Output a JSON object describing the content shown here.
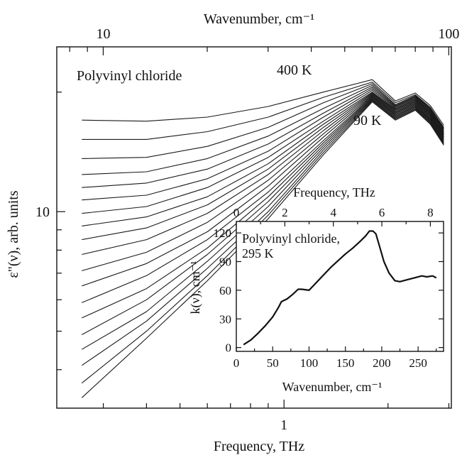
{
  "chart_data": [
    {
      "type": "line",
      "title": "",
      "xlabel": "Frequency, THz",
      "x2label": "Wavenumber, cm⁻¹",
      "ylabel": "ε\"(ν), arb. units",
      "xscale": "log",
      "yscale": "log",
      "xlim": [
        0.22,
        3.05
      ],
      "ylim": [
        3.2,
        26
      ],
      "x_ticks": [
        {
          "value": 1,
          "label": "1"
        }
      ],
      "x2_ticks": [
        {
          "value": 10,
          "label": "10"
        },
        {
          "value": 100,
          "label": "100"
        }
      ],
      "y_ticks": [
        {
          "value": 10,
          "label": "10"
        }
      ],
      "annotations": {
        "material": "Polyvinyl chloride",
        "top_temp": "400 K",
        "bottom_temp": "90 K"
      },
      "x": [
        0.26,
        0.4,
        0.6,
        0.9,
        1.3,
        1.8,
        2.1,
        2.4,
        2.65,
        2.9
      ],
      "series": [
        {
          "values": [
            17.0,
            16.9,
            17.3,
            18.4,
            20.0,
            21.5,
            19.0,
            19.9,
            18.5,
            16.5
          ]
        },
        {
          "values": [
            15.2,
            15.2,
            15.9,
            17.3,
            19.4,
            21.2,
            18.8,
            19.7,
            18.3,
            16.3
          ]
        },
        {
          "values": [
            13.6,
            13.7,
            14.6,
            16.3,
            18.8,
            21.0,
            18.6,
            19.6,
            18.2,
            16.2
          ]
        },
        {
          "values": [
            12.4,
            12.6,
            13.6,
            15.5,
            18.2,
            20.8,
            18.5,
            19.5,
            18.1,
            16.1
          ]
        },
        {
          "values": [
            11.5,
            11.8,
            12.8,
            14.8,
            17.7,
            20.6,
            18.4,
            19.4,
            18.0,
            16.0
          ]
        },
        {
          "values": [
            10.7,
            11.0,
            12.1,
            14.2,
            17.3,
            20.4,
            18.3,
            19.3,
            17.9,
            15.9
          ]
        },
        {
          "values": [
            9.9,
            10.3,
            11.5,
            13.7,
            16.9,
            20.2,
            18.2,
            19.2,
            17.8,
            15.8
          ]
        },
        {
          "values": [
            9.2,
            9.7,
            10.9,
            13.2,
            16.6,
            20.0,
            18.1,
            19.1,
            17.7,
            15.7
          ]
        },
        {
          "values": [
            8.5,
            9.1,
            10.4,
            12.8,
            16.3,
            19.9,
            18.0,
            19.0,
            17.6,
            15.6
          ]
        },
        {
          "values": [
            7.8,
            8.5,
            9.9,
            12.4,
            16.0,
            19.8,
            17.9,
            18.9,
            17.5,
            15.6
          ]
        },
        {
          "values": [
            7.1,
            7.9,
            9.4,
            12.0,
            15.7,
            19.7,
            17.8,
            18.8,
            17.4,
            15.5
          ]
        },
        {
          "values": [
            6.5,
            7.4,
            8.9,
            11.6,
            15.4,
            19.6,
            17.7,
            18.7,
            17.3,
            15.4
          ]
        },
        {
          "values": [
            5.9,
            6.9,
            8.5,
            11.2,
            15.1,
            19.5,
            17.6,
            18.6,
            17.2,
            15.3
          ]
        },
        {
          "values": [
            5.4,
            6.4,
            8.1,
            10.9,
            14.9,
            19.4,
            17.5,
            18.5,
            17.1,
            15.2
          ]
        },
        {
          "values": [
            4.9,
            6.0,
            7.8,
            10.6,
            14.7,
            19.3,
            17.4,
            18.4,
            17.0,
            15.1
          ]
        },
        {
          "values": [
            4.5,
            5.6,
            7.5,
            10.3,
            14.5,
            19.2,
            17.3,
            18.3,
            16.9,
            15.0
          ]
        },
        {
          "values": [
            4.1,
            5.3,
            7.2,
            10.0,
            14.3,
            19.1,
            17.2,
            18.2,
            16.8,
            14.9
          ]
        },
        {
          "values": [
            3.7,
            5.0,
            6.9,
            9.8,
            14.1,
            19.0,
            17.1,
            18.1,
            16.7,
            14.8
          ]
        },
        {
          "values": [
            3.4,
            4.8,
            6.7,
            9.6,
            13.9,
            18.9,
            17.0,
            18.0,
            16.6,
            14.7
          ]
        }
      ]
    },
    {
      "type": "line",
      "title": "",
      "xlabel": "Wavenumber,  cm⁻¹",
      "x2label": "Frequency, THz",
      "ylabel": "k(ν), cm⁻¹",
      "xlim": [
        0,
        285
      ],
      "ylim": [
        -4,
        132
      ],
      "x_ticks": [
        0,
        50,
        100,
        150,
        200,
        250
      ],
      "x2_ticks": [
        0,
        2,
        4,
        6,
        8
      ],
      "y_ticks": [
        0,
        30,
        60,
        90,
        120
      ],
      "annotations": {
        "line1": "Polyvinyl chloride,",
        "line2": "295 K"
      },
      "series": [
        {
          "name": "295 K",
          "x": [
            10,
            20,
            30,
            40,
            50,
            58,
            62,
            70,
            78,
            85,
            90,
            100,
            110,
            120,
            130,
            140,
            150,
            160,
            170,
            178,
            183,
            188,
            192,
            197,
            203,
            210,
            218,
            225,
            235,
            245,
            255,
            262,
            270,
            275
          ],
          "values": [
            3,
            8,
            15,
            23,
            32,
            42,
            48,
            51,
            56,
            61,
            61,
            60,
            68,
            76,
            84,
            91,
            98,
            104,
            111,
            117,
            122,
            122,
            119,
            106,
            90,
            78,
            70,
            69,
            71,
            73,
            75,
            74,
            75,
            73
          ]
        }
      ]
    }
  ]
}
